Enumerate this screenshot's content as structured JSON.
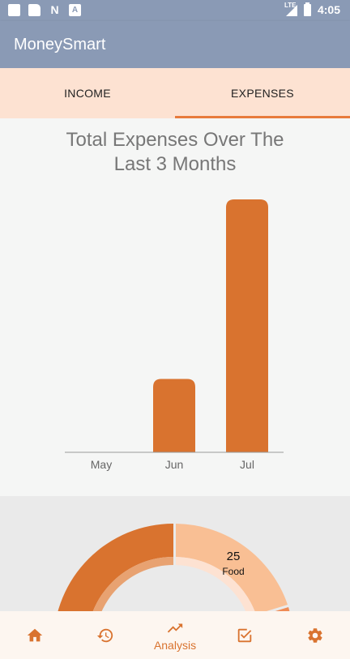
{
  "status_bar": {
    "time": "4:05",
    "network": "LTE"
  },
  "app_bar": {
    "title": "MoneySmart"
  },
  "tabs": [
    {
      "label": "INCOME",
      "active": false
    },
    {
      "label": "EXPENSES",
      "active": true
    }
  ],
  "chart_data": {
    "type": "bar",
    "title": "Total Expenses Over The Last 3 Months",
    "title_lines": [
      "Total Expenses Over The",
      "Last 3 Months"
    ],
    "categories": [
      "May",
      "Jun",
      "Jul"
    ],
    "values": [
      0,
      29,
      100
    ],
    "xlabel": "",
    "ylabel": "",
    "ylim": [
      0,
      100
    ],
    "grid": false,
    "bar_color": "#d9732f"
  },
  "donut_chart": {
    "type": "pie",
    "visible_slices": [
      {
        "value": 25,
        "label": "Food",
        "color": "#f9bf94"
      }
    ],
    "colors": {
      "primary": "#d9732f",
      "secondary": "#f9bf94",
      "accent": "#ef8b55"
    }
  },
  "bottom_nav": {
    "items": [
      {
        "name": "home",
        "icon": "home-icon",
        "label": "",
        "active": false
      },
      {
        "name": "history",
        "icon": "history-icon",
        "label": "",
        "active": false
      },
      {
        "name": "analysis",
        "icon": "trending-up-icon",
        "label": "Analysis",
        "active": true
      },
      {
        "name": "checklist",
        "icon": "checkbox-icon",
        "label": "",
        "active": false
      },
      {
        "name": "settings",
        "icon": "gear-icon",
        "label": "",
        "active": false
      }
    ]
  },
  "colors": {
    "app_bar": "#8a9ab5",
    "tab_bg": "#fde2d2",
    "accent": "#e87b3c",
    "nav_icon": "#d9732f"
  }
}
